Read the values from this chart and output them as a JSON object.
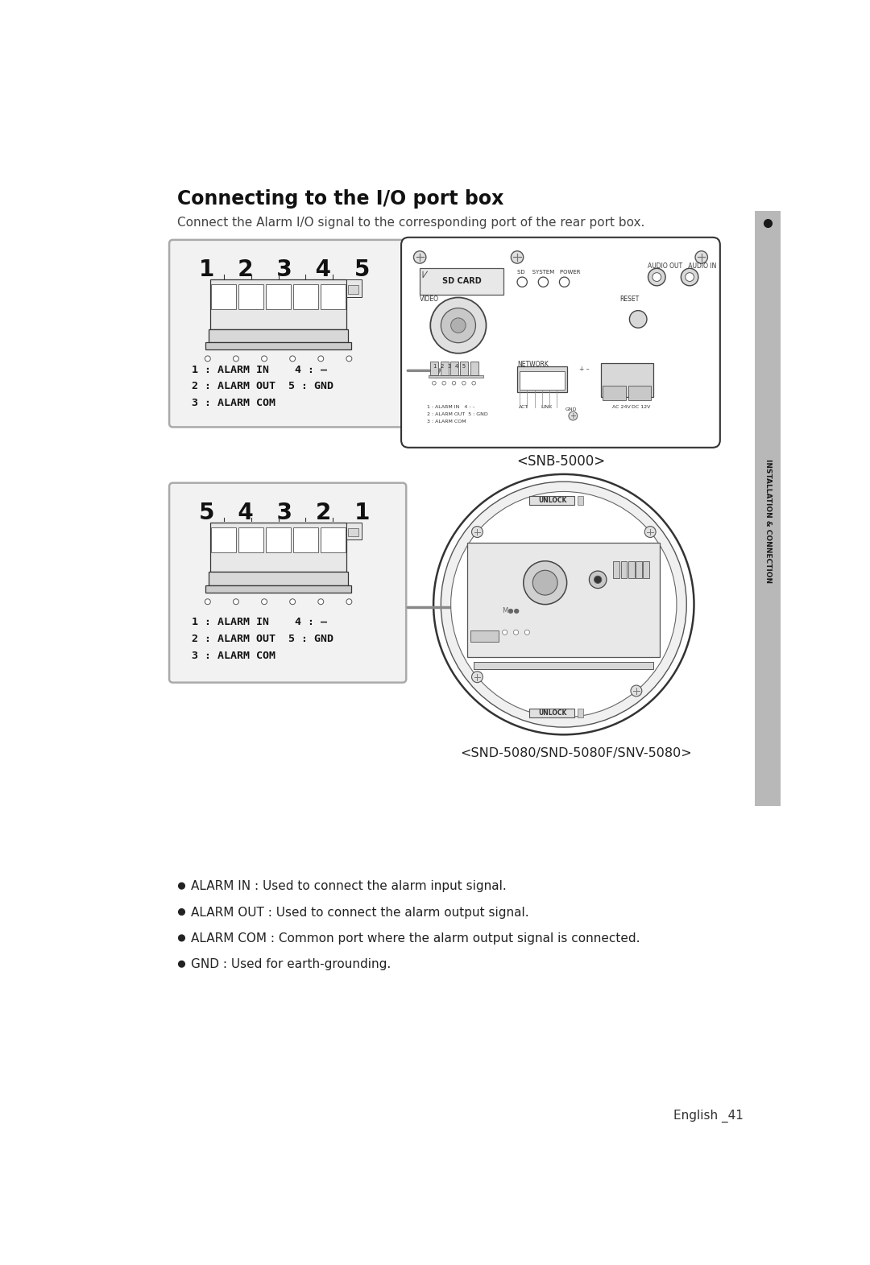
{
  "page_bg": "#ffffff",
  "page_width": 10.8,
  "page_height": 15.71,
  "title": "Connecting to the I/O port box",
  "subtitle": "Connect the Alarm I/O signal to the corresponding port of the rear port box.",
  "section1_label": "<SNB-5000>",
  "section2_label": "<SND-5080/SND-5080F/SNV-5080>",
  "connector1_numbers": "1  2  3  4  5",
  "connector2_numbers": "5  4  3  2  1",
  "alarm_labels_line1": "1 : ALARM IN    4 : –",
  "alarm_labels_line2": "2 : ALARM OUT  5 : GND",
  "alarm_labels_line3": "3 : ALARM COM",
  "bullet1": "ALARM IN : Used to connect the alarm input signal.",
  "bullet2": "ALARM OUT : Used to connect the alarm output signal.",
  "bullet3": "ALARM COM : Common port where the alarm output signal is connected.",
  "bullet4": "GND : Used for earth-grounding.",
  "footer": "English _41",
  "sidebar_text": "INSTALLATION & CONNECTION",
  "title_fontsize": 17,
  "subtitle_fontsize": 11,
  "body_fontsize": 11,
  "sidebar_color": "#b8b8b8",
  "box_border_color": "#aaaaaa",
  "connector_line_color": "#333333"
}
